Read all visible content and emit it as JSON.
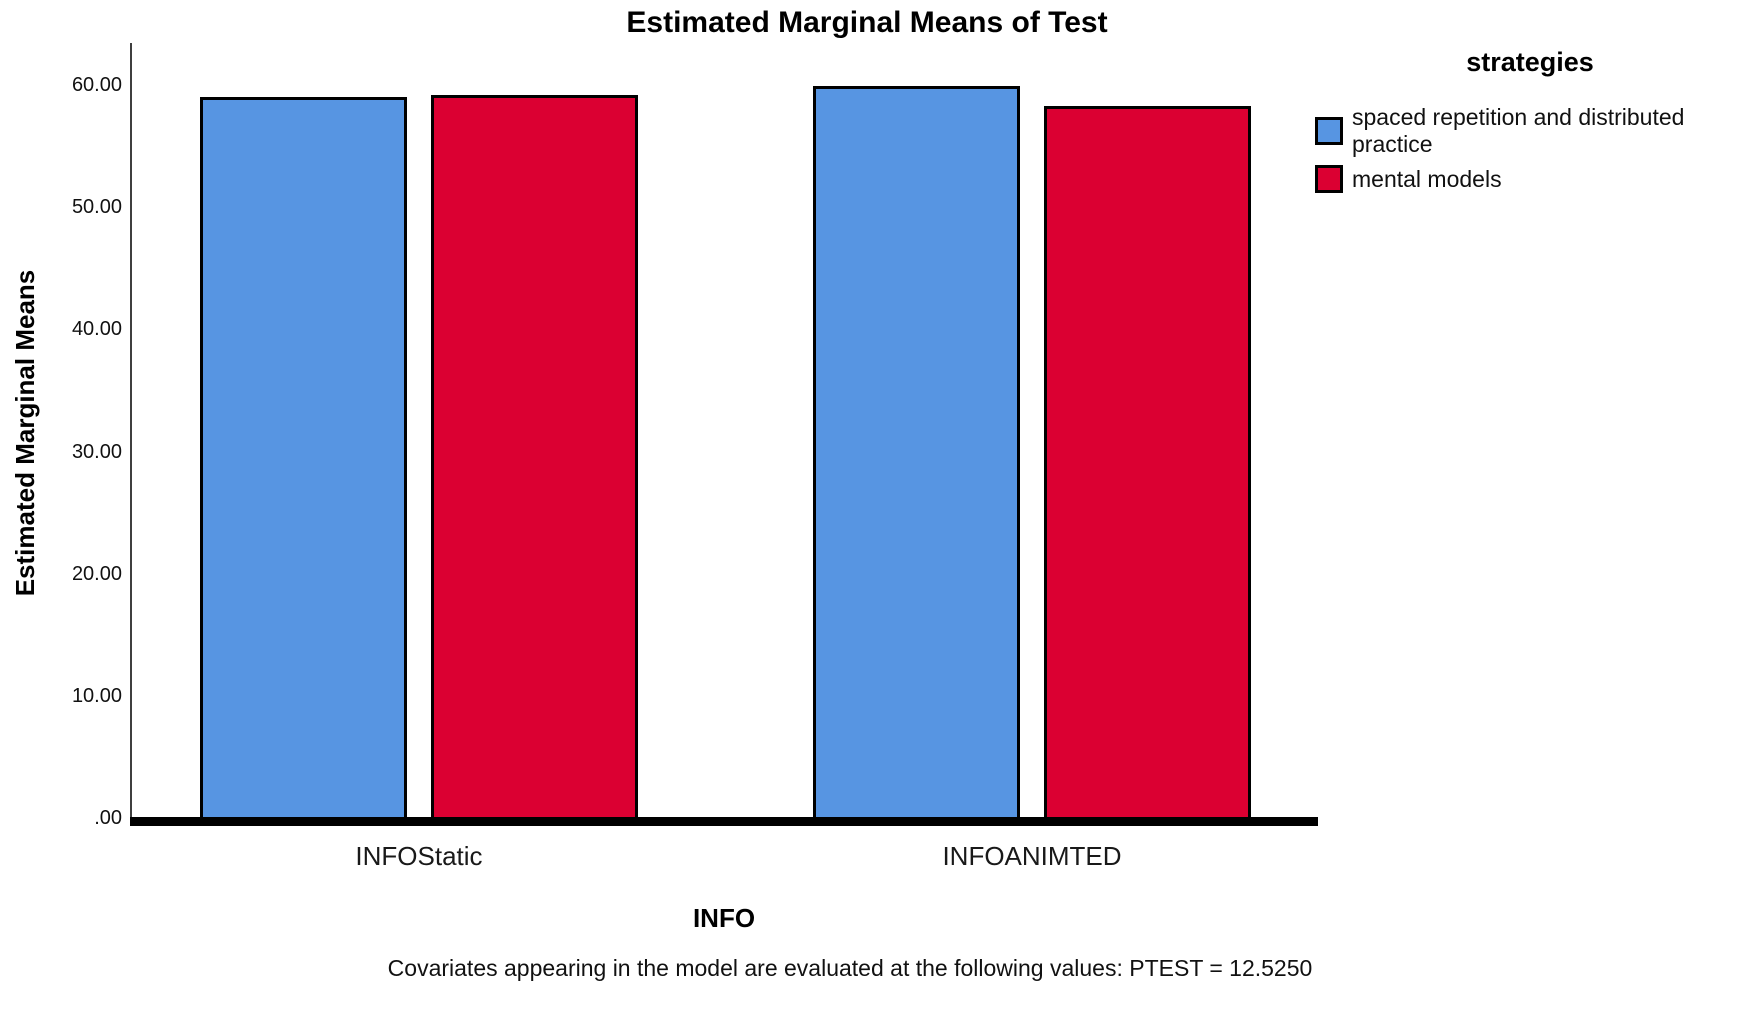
{
  "title": "Estimated Marginal Means of Test",
  "y_axis": {
    "title": "Estimated Marginal Means",
    "tick_labels": [
      ".00",
      "10.00",
      "20.00",
      "30.00",
      "40.00",
      "50.00",
      "60.00"
    ],
    "tick_values": [
      0,
      10,
      20,
      30,
      40,
      50,
      60
    ]
  },
  "x_axis": {
    "title": "INFO",
    "categories": [
      "INFOStatic",
      "INFOANIMTED"
    ]
  },
  "legend": {
    "title": "strategies",
    "items": [
      {
        "label": "spaced repetition and distributed practice",
        "lines": [
          "spaced repetition and distributed",
          "practice"
        ],
        "color": "#5795E2"
      },
      {
        "label": "mental models",
        "lines": [
          "mental models"
        ],
        "color": "#DB0032"
      }
    ]
  },
  "footnote": "Covariates appearing in the model are evaluated at the following values: PTEST = 12.5250",
  "colors": {
    "series_blue": "#5795E2",
    "series_red": "#DB0032",
    "bar_border": "#000000",
    "axis_line": "#3F3F3F",
    "baseline": "#000000",
    "background": "#FFFFFF"
  },
  "chart_data": {
    "type": "bar",
    "title": "Estimated Marginal Means of Test",
    "xlabel": "INFO",
    "ylabel": "Estimated Marginal Means",
    "categories": [
      "INFOStatic",
      "INFOANIMTED"
    ],
    "series": [
      {
        "name": "spaced repetition and distributed practice",
        "color": "#5795E2",
        "values": [
          59.0,
          59.9
        ]
      },
      {
        "name": "mental models",
        "color": "#DB0032",
        "values": [
          59.2,
          58.3
        ]
      }
    ],
    "yticks": [
      0,
      10,
      20,
      30,
      40,
      50,
      60
    ],
    "ylim": [
      0,
      63.5
    ],
    "grid": false,
    "legend_position": "right",
    "legend_title": "strategies",
    "footnote": "Covariates appearing in the model are evaluated at the following values: PTEST = 12.5250"
  }
}
